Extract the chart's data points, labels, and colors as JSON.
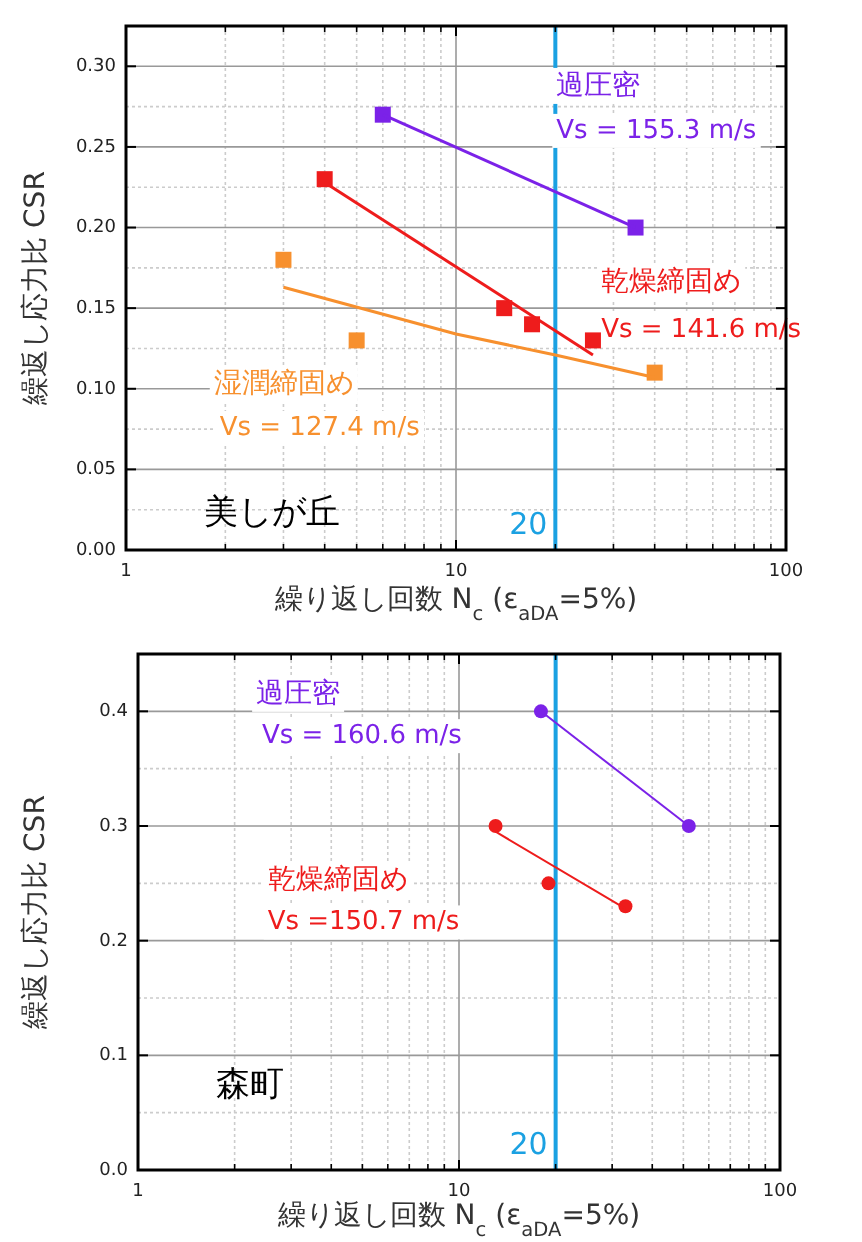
{
  "chart_data": [
    {
      "type": "scatter",
      "xlabel": "繰り返し回数 N$_{c}$ (ε$_{aDA}$=5%)",
      "ylabel": "繰返し応力比 CSR",
      "log": "x",
      "grid": true,
      "xlim": [
        1,
        100
      ],
      "xticks": [
        1,
        10,
        100
      ],
      "ylim": [
        0,
        0.325
      ],
      "yticks": [
        {
          "value": 0,
          "label": "0.00"
        },
        {
          "value": 0.05,
          "label": "0.05"
        },
        {
          "value": 0.1,
          "label": "0.10"
        },
        {
          "value": 0.15,
          "label": "0.15"
        },
        {
          "value": 0.2,
          "label": "0.20"
        },
        {
          "value": 0.25,
          "label": "0.25"
        },
        {
          "value": 0.3,
          "label": "0.30"
        }
      ],
      "series": [
        {
          "name": "過圧密",
          "marker": "square",
          "color": "#7b22e8",
          "x": [
            6,
            35
          ],
          "values": [
            0.27,
            0.2
          ]
        },
        {
          "type": "line",
          "color": "#7b22e8",
          "x": [
            6,
            35
          ],
          "values": [
            0.27,
            0.2
          ]
        },
        {
          "name": "乾燥締固め",
          "marker": "square",
          "color": "#ee1c1c",
          "x": [
            4,
            14,
            17,
            26
          ],
          "values": [
            0.23,
            0.15,
            0.14,
            0.13
          ]
        },
        {
          "type": "line",
          "color": "#ee1c1c",
          "x": [
            4,
            26
          ],
          "values": [
            0.228,
            0.121
          ]
        },
        {
          "name": "湿潤締固め",
          "marker": "square",
          "color": "#f7902e",
          "x": [
            3,
            5,
            40
          ],
          "values": [
            0.18,
            0.13,
            0.11
          ]
        },
        {
          "type": "line",
          "color": "#f7902e",
          "x": [
            3,
            10,
            20,
            40
          ],
          "values": [
            0.163,
            0.134,
            0.121,
            0.107
          ]
        }
      ],
      "ref_lines": [
        {
          "axis": "x",
          "value": 20,
          "label": "20",
          "color": "#1ba1e2"
        }
      ],
      "annotations": [
        "Vs = 155.3 m/s",
        "Vs = 141.6 m/s",
        "Vs = 127.4 m/s",
        "美しが丘"
      ]
    },
    {
      "type": "scatter",
      "xlabel": "繰り返し回数 N$_{c}$ (ε$_{aDA}$=5%)",
      "ylabel": "繰返し応力比 CSR",
      "log": "x",
      "grid": true,
      "xlim": [
        1,
        100
      ],
      "xticks": [
        1,
        10,
        100
      ],
      "ylim": [
        0,
        0.45
      ],
      "yticks": [
        {
          "value": 0,
          "label": "0.0"
        },
        {
          "value": 0.1,
          "label": "0.1"
        },
        {
          "value": 0.2,
          "label": "0.2"
        },
        {
          "value": 0.3,
          "label": "0.3"
        },
        {
          "value": 0.4,
          "label": "0.4"
        }
      ],
      "series": [
        {
          "name": "過圧密",
          "marker": "circle",
          "color": "#7b22e8",
          "x": [
            18,
            52
          ],
          "values": [
            0.4,
            0.3
          ]
        },
        {
          "type": "line",
          "color": "#7b22e8",
          "x": [
            18,
            52
          ],
          "values": [
            0.4,
            0.3
          ]
        },
        {
          "name": "乾燥締固め",
          "marker": "circle",
          "color": "#ee1c1c",
          "x": [
            13,
            19,
            33
          ],
          "values": [
            0.3,
            0.25,
            0.23
          ]
        },
        {
          "type": "line",
          "color": "#ee1c1c",
          "x": [
            13,
            33
          ],
          "values": [
            0.295,
            0.228
          ]
        }
      ],
      "ref_lines": [
        {
          "axis": "x",
          "value": 20,
          "label": "20",
          "color": "#1ba1e2"
        }
      ],
      "annotations": [
        "Vs = 160.6 m/s",
        "Vs =150.7 m/s",
        "森町"
      ]
    }
  ]
}
